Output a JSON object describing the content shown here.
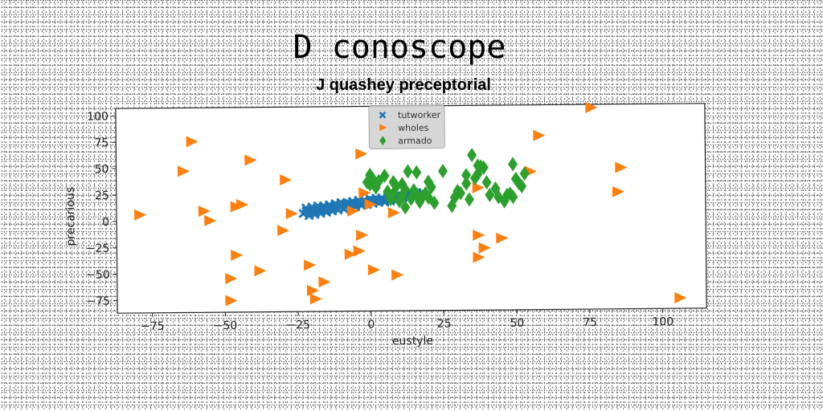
{
  "chart_data": {
    "type": "scatter",
    "title": "D conoscope",
    "subtitle": "J quashey preceptorial",
    "xlabel": "eustyle",
    "ylabel": "precarious",
    "xlim": [
      -87,
      115
    ],
    "ylim": [
      -87,
      107
    ],
    "xticks": [
      -75,
      -50,
      -25,
      0,
      25,
      50,
      75,
      100
    ],
    "yticks": [
      100,
      75,
      50,
      25,
      0,
      -25,
      -50,
      -75
    ],
    "xtick_labels": [
      "−75",
      "−50",
      "−25",
      "0",
      "25",
      "50",
      "75",
      "100"
    ],
    "ytick_labels": [
      "100",
      "75",
      "50",
      "25",
      "0",
      "−25",
      "−50",
      "−75"
    ],
    "grid": false,
    "legend_position": "top-center",
    "series": [
      {
        "name": "tutworker",
        "marker": "x",
        "color": "#1f77b4",
        "points": [
          [
            -23,
            6
          ],
          [
            -22,
            8
          ],
          [
            -21,
            7
          ],
          [
            -20,
            9
          ],
          [
            -19,
            8
          ],
          [
            -18,
            10
          ],
          [
            -17,
            9
          ],
          [
            -16,
            11
          ],
          [
            -15,
            10
          ],
          [
            -14,
            12
          ],
          [
            -13,
            11
          ],
          [
            -12,
            12
          ],
          [
            -11,
            13
          ],
          [
            -10,
            12
          ],
          [
            -9,
            14
          ],
          [
            -8,
            13
          ],
          [
            -7,
            15
          ],
          [
            -6,
            14
          ],
          [
            -5,
            15
          ],
          [
            -4,
            16
          ],
          [
            -3,
            15
          ],
          [
            -2,
            17
          ],
          [
            -1,
            16
          ],
          [
            0,
            17
          ],
          [
            1,
            18
          ],
          [
            2,
            17
          ],
          [
            3,
            18
          ],
          [
            4,
            19
          ],
          [
            5,
            18
          ],
          [
            6,
            20
          ],
          [
            7,
            19
          ],
          [
            8,
            20
          ],
          [
            9,
            21
          ],
          [
            10,
            20
          ],
          [
            11,
            22
          ],
          [
            12,
            21
          ],
          [
            13,
            22
          ],
          [
            14,
            23
          ],
          [
            15,
            22
          ],
          [
            16,
            24
          ],
          [
            17,
            23
          ],
          [
            18,
            24
          ],
          [
            -22,
            11
          ],
          [
            -20,
            12
          ],
          [
            -18,
            13
          ],
          [
            -16,
            13
          ],
          [
            -14,
            14
          ],
          [
            -12,
            15
          ],
          [
            -10,
            16
          ],
          [
            -8,
            16
          ],
          [
            -6,
            17
          ],
          [
            -4,
            18
          ],
          [
            -2,
            18
          ],
          [
            0,
            19
          ],
          [
            2,
            20
          ],
          [
            4,
            20
          ],
          [
            6,
            21
          ],
          [
            8,
            22
          ],
          [
            10,
            22
          ],
          [
            12,
            23
          ],
          [
            14,
            24
          ],
          [
            16,
            25
          ],
          [
            -21,
            4
          ],
          [
            -19,
            5
          ],
          [
            -17,
            6
          ],
          [
            -15,
            7
          ],
          [
            -13,
            8
          ],
          [
            -11,
            9
          ],
          [
            -9,
            10
          ],
          [
            -7,
            11
          ],
          [
            -5,
            12
          ],
          [
            -3,
            13
          ],
          [
            -1,
            14
          ],
          [
            1,
            15
          ],
          [
            3,
            16
          ],
          [
            5,
            16
          ],
          [
            7,
            17
          ],
          [
            9,
            18
          ],
          [
            11,
            18
          ],
          [
            13,
            19
          ],
          [
            15,
            20
          ],
          [
            17,
            20
          ],
          [
            19,
            21
          ],
          [
            20,
            23
          ]
        ]
      },
      {
        "name": "wholes",
        "marker": "triangle-right",
        "color": "#ff7f0e",
        "points": [
          [
            -79,
            6
          ],
          [
            -61,
            75
          ],
          [
            -64,
            47
          ],
          [
            -57,
            9
          ],
          [
            -55,
            0
          ],
          [
            -44,
            15
          ],
          [
            -46,
            13
          ],
          [
            -41,
            57
          ],
          [
            -29,
            38
          ],
          [
            -27,
            6
          ],
          [
            -30,
            -10
          ],
          [
            -46,
            -33
          ],
          [
            -38,
            -48
          ],
          [
            -48,
            -55
          ],
          [
            -48,
            -76
          ],
          [
            -20,
            -67
          ],
          [
            -19,
            -75
          ],
          [
            -16,
            -59
          ],
          [
            -21,
            -43
          ],
          [
            -7,
            -33
          ],
          [
            -4,
            -30
          ],
          [
            -3,
            -15
          ],
          [
            1,
            -48
          ],
          [
            9,
            -53
          ],
          [
            -2,
            25
          ],
          [
            0,
            14
          ],
          [
            -6,
            8
          ],
          [
            -3,
            62
          ],
          [
            8,
            6
          ],
          [
            55,
            44
          ],
          [
            58,
            78
          ],
          [
            76,
            104
          ],
          [
            86,
            47
          ],
          [
            85,
            24
          ],
          [
            37,
            29
          ],
          [
            37,
            -16
          ],
          [
            39,
            -28
          ],
          [
            45,
            -19
          ],
          [
            37,
            -37
          ],
          [
            106,
            -77
          ]
        ]
      },
      {
        "name": "armado",
        "marker": "diamond",
        "color": "#2ca02c",
        "points": [
          [
            0,
            42
          ],
          [
            1,
            38
          ],
          [
            0,
            33
          ],
          [
            2,
            30
          ],
          [
            3,
            36
          ],
          [
            5,
            41
          ],
          [
            6,
            26
          ],
          [
            7,
            19
          ],
          [
            8,
            24
          ],
          [
            9,
            31
          ],
          [
            10,
            17
          ],
          [
            11,
            22
          ],
          [
            12,
            11
          ],
          [
            14,
            19
          ],
          [
            15,
            27
          ],
          [
            16,
            23
          ],
          [
            17,
            16
          ],
          [
            18,
            21
          ],
          [
            20,
            20
          ],
          [
            19,
            24
          ],
          [
            13,
            45
          ],
          [
            12,
            28
          ],
          [
            16,
            44
          ],
          [
            20,
            35
          ],
          [
            21,
            30
          ],
          [
            22,
            15
          ],
          [
            25,
            45
          ],
          [
            28,
            12
          ],
          [
            29,
            20
          ],
          [
            31,
            24
          ],
          [
            33,
            33
          ],
          [
            34,
            18
          ],
          [
            35,
            60
          ],
          [
            36,
            38
          ],
          [
            37,
            42
          ],
          [
            38,
            49
          ],
          [
            39,
            48
          ],
          [
            40,
            34
          ],
          [
            41,
            22
          ],
          [
            43,
            28
          ],
          [
            44,
            20
          ],
          [
            46,
            16
          ],
          [
            47,
            22
          ],
          [
            48,
            23
          ],
          [
            49,
            20
          ],
          [
            50,
            37
          ],
          [
            51,
            33
          ],
          [
            52,
            30
          ],
          [
            53,
            42
          ],
          [
            49,
            51
          ],
          [
            37,
            50
          ],
          [
            33,
            41
          ],
          [
            30,
            26
          ],
          [
            -1,
            35
          ],
          [
            8,
            35
          ],
          [
            11,
            33
          ]
        ]
      }
    ]
  }
}
